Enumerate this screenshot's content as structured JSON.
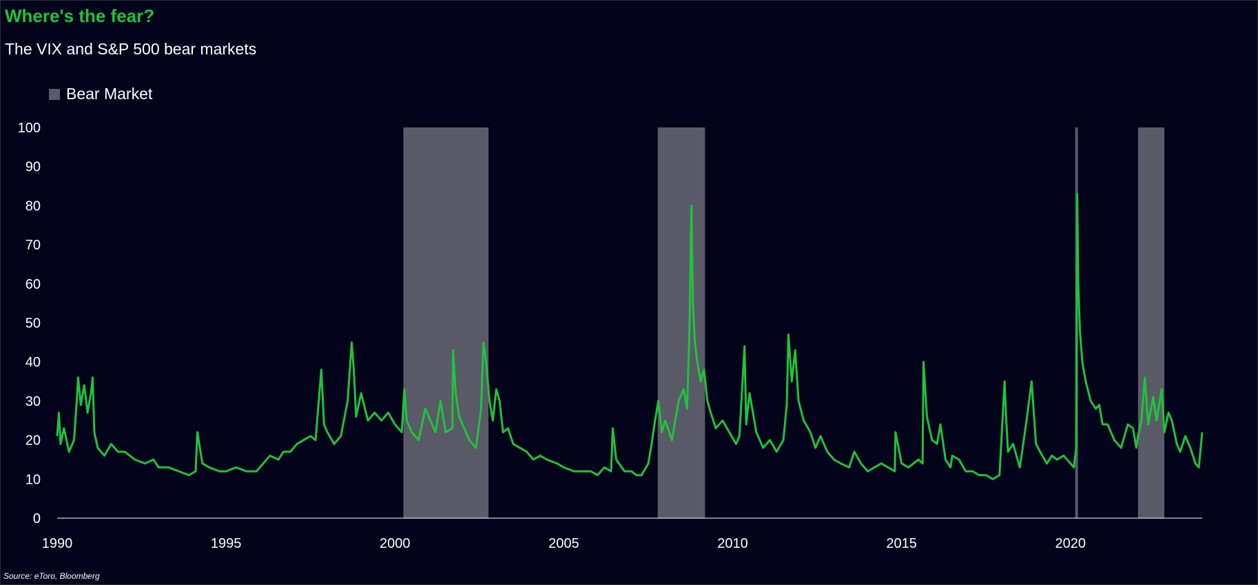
{
  "title": "Where's the fear?",
  "subtitle": "The VIX and S&P 500 bear markets",
  "source": "Source: eToro, Bloomberg",
  "colors": {
    "background": "#03031c",
    "line": "#1ec43c",
    "bear_band": "#5a5a68",
    "title": "#1ec43c",
    "text": "#ffffff"
  },
  "chart_data": {
    "type": "line",
    "title": "Where's the fear?",
    "subtitle": "The VIX and S&P 500 bear markets",
    "xlabel": "",
    "ylabel": "",
    "xlim": [
      1990,
      2023.9
    ],
    "ylim": [
      0,
      100
    ],
    "x_ticks": [
      "1990",
      "1995",
      "2000",
      "2005",
      "2010",
      "2015",
      "2020"
    ],
    "y_ticks": [
      "0",
      "10",
      "20",
      "30",
      "40",
      "50",
      "60",
      "70",
      "80",
      "90",
      "100"
    ],
    "grid": false,
    "legend": {
      "placement": "top-left",
      "entries": [
        "Bear Market"
      ]
    },
    "bear_markets": [
      {
        "start": 2000.25,
        "end": 2002.77
      },
      {
        "start": 2007.78,
        "end": 2009.18
      },
      {
        "start": 2020.14,
        "end": 2020.22
      },
      {
        "start": 2022.0,
        "end": 2022.78
      }
    ],
    "series": [
      {
        "name": "VIX",
        "x": [
          1990.0,
          1990.05,
          1990.1,
          1990.2,
          1990.35,
          1990.5,
          1990.58,
          1990.62,
          1990.7,
          1990.8,
          1990.9,
          1991.0,
          1991.05,
          1991.1,
          1991.2,
          1991.4,
          1991.6,
          1991.8,
          1992.0,
          1992.3,
          1992.6,
          1992.85,
          1993.0,
          1993.3,
          1993.6,
          1993.9,
          1994.1,
          1994.15,
          1994.3,
          1994.5,
          1994.8,
          1995.0,
          1995.3,
          1995.6,
          1995.9,
          1996.1,
          1996.3,
          1996.55,
          1996.7,
          1996.9,
          1997.1,
          1997.3,
          1997.5,
          1997.65,
          1997.82,
          1997.9,
          1998.0,
          1998.2,
          1998.4,
          1998.6,
          1998.72,
          1998.78,
          1998.85,
          1999.0,
          1999.2,
          1999.4,
          1999.6,
          1999.8,
          2000.0,
          2000.2,
          2000.28,
          2000.35,
          2000.5,
          2000.7,
          2000.9,
          2001.05,
          2001.2,
          2001.35,
          2001.5,
          2001.7,
          2001.72,
          2001.8,
          2001.9,
          2002.0,
          2002.2,
          2002.4,
          2002.55,
          2002.62,
          2002.7,
          2002.8,
          2002.9,
          2003.0,
          2003.1,
          2003.2,
          2003.35,
          2003.5,
          2003.7,
          2003.9,
          2004.1,
          2004.3,
          2004.5,
          2004.8,
          2005.0,
          2005.3,
          2005.6,
          2005.8,
          2006.0,
          2006.2,
          2006.4,
          2006.45,
          2006.55,
          2006.8,
          2007.0,
          2007.15,
          2007.3,
          2007.5,
          2007.6,
          2007.7,
          2007.8,
          2007.9,
          2008.0,
          2008.2,
          2008.4,
          2008.55,
          2008.65,
          2008.72,
          2008.78,
          2008.82,
          2008.88,
          2008.95,
          2009.05,
          2009.15,
          2009.25,
          2009.35,
          2009.5,
          2009.7,
          2009.9,
          2010.1,
          2010.2,
          2010.35,
          2010.4,
          2010.5,
          2010.7,
          2010.9,
          2011.1,
          2011.3,
          2011.5,
          2011.6,
          2011.65,
          2011.75,
          2011.85,
          2011.95,
          2012.1,
          2012.3,
          2012.45,
          2012.6,
          2012.8,
          2013.0,
          2013.2,
          2013.45,
          2013.6,
          2013.8,
          2014.0,
          2014.2,
          2014.4,
          2014.6,
          2014.8,
          2014.82,
          2015.0,
          2015.2,
          2015.5,
          2015.62,
          2015.65,
          2015.75,
          2015.9,
          2016.05,
          2016.15,
          2016.3,
          2016.45,
          2016.5,
          2016.7,
          2016.9,
          2017.1,
          2017.3,
          2017.5,
          2017.7,
          2017.9,
          2018.05,
          2018.1,
          2018.15,
          2018.3,
          2018.5,
          2018.7,
          2018.85,
          2018.98,
          2019.1,
          2019.3,
          2019.45,
          2019.6,
          2019.8,
          2020.0,
          2020.1,
          2020.17,
          2020.2,
          2020.23,
          2020.28,
          2020.35,
          2020.45,
          2020.6,
          2020.75,
          2020.85,
          2020.95,
          2021.1,
          2021.3,
          2021.5,
          2021.7,
          2021.85,
          2021.95,
          2022.0,
          2022.1,
          2022.2,
          2022.3,
          2022.45,
          2022.55,
          2022.7,
          2022.78,
          2022.9,
          2023.0,
          2023.15,
          2023.25,
          2023.4,
          2023.55,
          2023.7,
          2023.8,
          2023.9
        ],
        "values": [
          21,
          27,
          19,
          23,
          17,
          20,
          30,
          36,
          29,
          34,
          27,
          32,
          36,
          22,
          18,
          16,
          19,
          17,
          17,
          15,
          14,
          15,
          13,
          13,
          12,
          11,
          12,
          22,
          14,
          13,
          12,
          12,
          13,
          12,
          12,
          14,
          16,
          15,
          17,
          17,
          19,
          20,
          21,
          20,
          38,
          24,
          22,
          19,
          21,
          30,
          45,
          38,
          26,
          32,
          25,
          27,
          25,
          27,
          24,
          22,
          33,
          25,
          22,
          20,
          28,
          25,
          22,
          30,
          22,
          23,
          43,
          32,
          26,
          24,
          20,
          18,
          28,
          45,
          40,
          30,
          25,
          33,
          30,
          22,
          23,
          19,
          18,
          17,
          15,
          16,
          15,
          14,
          13,
          12,
          12,
          12,
          11,
          13,
          12,
          23,
          15,
          12,
          12,
          11,
          11,
          14,
          19,
          25,
          30,
          22,
          25,
          20,
          30,
          33,
          28,
          48,
          80,
          55,
          45,
          40,
          35,
          38,
          30,
          27,
          23,
          25,
          22,
          19,
          21,
          44,
          24,
          32,
          22,
          18,
          20,
          17,
          20,
          29,
          47,
          35,
          43,
          30,
          25,
          22,
          18,
          21,
          17,
          15,
          14,
          13,
          17,
          14,
          12,
          13,
          14,
          13,
          12,
          22,
          14,
          13,
          15,
          14,
          40,
          26,
          20,
          19,
          24,
          15,
          13,
          16,
          15,
          12,
          12,
          11,
          11,
          10,
          11,
          35,
          25,
          17,
          19,
          13,
          25,
          35,
          19,
          17,
          14,
          16,
          15,
          16,
          14,
          13,
          18,
          83,
          60,
          48,
          40,
          35,
          30,
          28,
          29,
          24,
          24,
          20,
          18,
          24,
          23,
          18,
          21,
          25,
          36,
          24,
          31,
          25,
          33,
          22,
          27,
          25,
          19,
          17,
          21,
          18,
          14,
          13,
          22
        ]
      }
    ]
  }
}
